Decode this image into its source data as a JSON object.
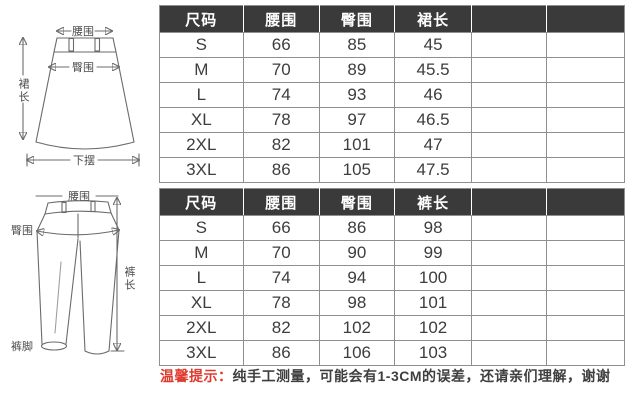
{
  "colors": {
    "header_bg": "#3a3a3a",
    "header_text": "#ffffff",
    "table_border": "#8f8f8f",
    "body_text": "#3d3d3d",
    "note_red": "#e03a2e",
    "sketch_stroke": "#6b6b6b"
  },
  "chart_data": [
    {
      "type": "table",
      "headers": [
        "尺码",
        "腰围",
        "臀围",
        "裙长",
        "",
        ""
      ],
      "rows": [
        [
          "S",
          "66",
          "85",
          "45",
          "",
          ""
        ],
        [
          "M",
          "70",
          "89",
          "45.5",
          "",
          ""
        ],
        [
          "L",
          "74",
          "93",
          "46",
          "",
          ""
        ],
        [
          "XL",
          "78",
          "97",
          "46.5",
          "",
          ""
        ],
        [
          "2XL",
          "82",
          "101",
          "47",
          "",
          ""
        ],
        [
          "3XL",
          "86",
          "105",
          "47.5",
          "",
          ""
        ]
      ]
    },
    {
      "type": "table",
      "headers": [
        "尺码",
        "腰围",
        "臀围",
        "裤长",
        "",
        ""
      ],
      "rows": [
        [
          "S",
          "66",
          "86",
          "98",
          "",
          ""
        ],
        [
          "M",
          "70",
          "90",
          "99",
          "",
          ""
        ],
        [
          "L",
          "74",
          "94",
          "100",
          "",
          ""
        ],
        [
          "XL",
          "78",
          "98",
          "101",
          "",
          ""
        ],
        [
          "2XL",
          "82",
          "102",
          "102",
          "",
          ""
        ],
        [
          "3XL",
          "86",
          "106",
          "103",
          "",
          ""
        ]
      ]
    }
  ],
  "sketches": {
    "skirt": {
      "waist": "腰围",
      "hip": "臀围",
      "length": "裙长",
      "hem": "下摆"
    },
    "pants": {
      "waist": "腰围",
      "hip": "臀围",
      "length": "裤长",
      "cuff": "裤脚"
    }
  },
  "note": {
    "prefix": "温馨提示：",
    "body": "纯手工测量，可能会有1-3CM的误差，还请亲们理解，谢谢"
  }
}
